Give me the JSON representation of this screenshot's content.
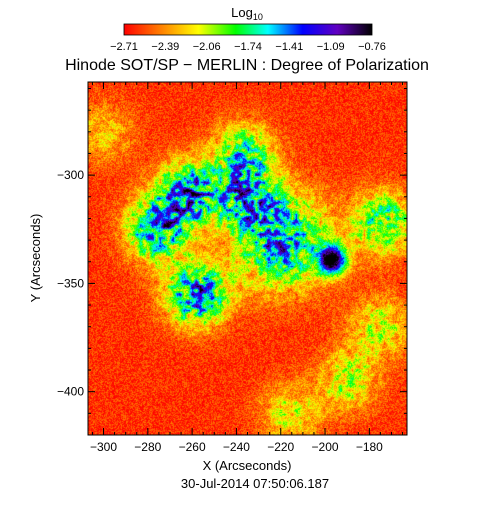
{
  "chart_data": {
    "type": "heatmap",
    "title": "Hinode SOT/SP − MERLIN : Degree of Polarization",
    "colorbar": {
      "title_main": "Log",
      "title_sub": "10",
      "ticks": [
        "−2.71",
        "−2.39",
        "−2.06",
        "−1.74",
        "−1.41",
        "−1.09",
        "−0.76"
      ],
      "range": [
        -2.71,
        -0.76
      ],
      "colormap": "rainbow (red → yellow → green → cyan → blue → violet → black)"
    },
    "xlabel": "X (Arcseconds)",
    "ylabel": "Y (Arcseconds)",
    "xlim": [
      -307,
      -163
    ],
    "ylim": [
      -420,
      -257
    ],
    "xticks": [
      -300,
      -280,
      -260,
      -240,
      -220,
      -200,
      -180
    ],
    "xtick_labels": [
      "−300",
      "−280",
      "−260",
      "−240",
      "−220",
      "−200",
      "−180"
    ],
    "yticks": [
      -300,
      -350,
      -400
    ],
    "ytick_labels": [
      "−300",
      "−350",
      "−400"
    ],
    "timestamp": "30-Jul-2014 07:50:06.187",
    "background_level": -2.6,
    "features": [
      {
        "kind": "spot",
        "x": -197,
        "y": -339,
        "peak": -0.76
      },
      {
        "kind": "plage",
        "x": -220,
        "y": -330,
        "peak": -1.3
      },
      {
        "kind": "network",
        "x": -262,
        "y": -308,
        "peak": -1.2
      },
      {
        "kind": "network",
        "x": -276,
        "y": -325,
        "peak": -1.3
      },
      {
        "kind": "network",
        "x": -258,
        "y": -355,
        "peak": -1.2
      },
      {
        "kind": "network",
        "x": -236,
        "y": -310,
        "peak": -1.5
      },
      {
        "kind": "network",
        "x": -237,
        "y": -290,
        "peak": -1.7
      },
      {
        "kind": "network",
        "x": -174,
        "y": -322,
        "peak": -1.6
      },
      {
        "kind": "network",
        "x": -176,
        "y": -370,
        "peak": -2.0
      },
      {
        "kind": "network",
        "x": -190,
        "y": -395,
        "peak": -2.0
      },
      {
        "kind": "network",
        "x": -216,
        "y": -410,
        "peak": -2.1
      },
      {
        "kind": "network",
        "x": -300,
        "y": -280,
        "peak": -2.2
      }
    ]
  }
}
